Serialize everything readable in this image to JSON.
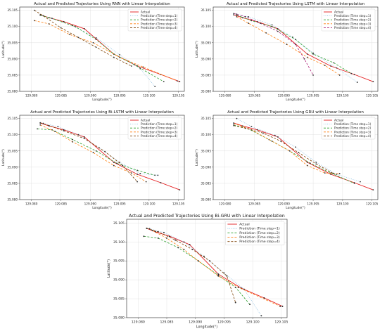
{
  "chart_data": [
    {
      "type": "line",
      "title": "Actual and Predicted Trajectories Using RNN with Linear Interpolation",
      "xlabel": "Longitude(°)",
      "ylabel": "Latitude(°)",
      "xlim": [
        129.078,
        129.106
      ],
      "ylim": [
        35.08,
        35.106
      ],
      "xticks": [
        "129.080",
        "129.085",
        "129.090",
        "129.095",
        "129.100",
        "129.105"
      ],
      "yticks": [
        "35.080",
        "35.085",
        "35.090",
        "35.095",
        "35.100",
        "35.105"
      ],
      "grid": true,
      "legend_position": "top-right",
      "series": [
        {
          "name": "Actual",
          "color": "#e41a1c",
          "dash": "solid",
          "x": [
            129.0815,
            129.083,
            129.0855,
            129.089,
            129.094,
            129.098,
            129.102,
            129.1052
          ],
          "y": [
            35.1036,
            35.1027,
            35.1015,
            35.0993,
            35.0915,
            35.0878,
            35.0852,
            35.083
          ]
        },
        {
          "name": "Prediction (Time step=1)",
          "color": "#8fc1e3",
          "dash": "dotted",
          "x": [
            129.0815,
            129.083,
            129.087,
            129.091,
            129.095,
            129.0985,
            129.101
          ],
          "y": [
            35.1035,
            35.1027,
            35.1003,
            35.0965,
            35.0913,
            35.087,
            35.0815
          ]
        },
        {
          "name": "Prediction (Time step=2)",
          "color": "#2ca02c",
          "dash": "dashed",
          "x": [
            129.0815,
            129.0835,
            129.0875,
            129.091,
            129.094,
            129.0975,
            129.1025
          ],
          "y": [
            35.1035,
            35.1025,
            35.0999,
            35.096,
            35.0915,
            35.0882,
            35.083
          ]
        },
        {
          "name": "Prediction (Time step=3)",
          "color": "#ff7f0e",
          "dash": "dashed",
          "x": [
            129.0805,
            129.083,
            129.0865,
            129.0905,
            129.095,
            129.099,
            129.1048
          ],
          "y": [
            35.1018,
            35.1008,
            35.0975,
            35.095,
            35.0905,
            35.0875,
            35.0832
          ]
        },
        {
          "name": "Prediction (Time step=4)",
          "color": "#7b3f00",
          "dash": "dashed",
          "x": [
            129.0805,
            129.082,
            129.085,
            129.088,
            129.091,
            129.094,
            129.097
          ],
          "y": [
            35.105,
            35.1033,
            35.0996,
            35.0966,
            35.0936,
            35.0905,
            35.0878
          ]
        }
      ]
    },
    {
      "type": "line",
      "title": "Actual and Predicted Trajectories Using LSTM with Linear Interpolation",
      "xlabel": "Longitude(°)",
      "ylabel": "Latitude(°)",
      "xlim": [
        129.078,
        129.106
      ],
      "ylim": [
        35.08,
        35.106
      ],
      "xticks": [
        "129.080",
        "129.085",
        "129.090",
        "129.095",
        "129.100",
        "129.105"
      ],
      "yticks": [
        "35.080",
        "35.085",
        "35.090",
        "35.095",
        "35.100",
        "35.105"
      ],
      "grid": true,
      "legend_position": "top-right",
      "series": [
        {
          "name": "Actual",
          "color": "#e41a1c",
          "dash": "solid",
          "x": [
            129.0815,
            129.083,
            129.0855,
            129.089,
            129.094,
            129.098,
            129.102,
            129.1052
          ],
          "y": [
            35.1036,
            35.1027,
            35.1015,
            35.0993,
            35.0915,
            35.0878,
            35.0852,
            35.083
          ]
        },
        {
          "name": "Prediction (Time step=1)",
          "color": "#8fc1e3",
          "dash": "dotted",
          "x": [
            129.082,
            129.084,
            129.088,
            129.0915,
            129.095,
            129.099,
            129.1025
          ],
          "y": [
            35.1038,
            35.103,
            35.1005,
            35.0967,
            35.0918,
            35.0872,
            35.0828
          ]
        },
        {
          "name": "Prediction (Time step=2)",
          "color": "#2ca02c",
          "dash": "dashed",
          "x": [
            129.082,
            129.0845,
            129.088,
            129.092,
            129.095,
            129.0985,
            129.1015
          ],
          "y": [
            35.1035,
            35.1018,
            35.1,
            35.096,
            35.0915,
            35.0888,
            35.0855
          ]
        },
        {
          "name": "Prediction (Time step=3)",
          "color": "#ff7f0e",
          "dash": "dashed",
          "x": [
            129.082,
            129.084,
            129.087,
            129.0905,
            129.094,
            129.097,
            129.0995
          ],
          "y": [
            35.103,
            35.101,
            35.098,
            35.0945,
            35.0905,
            35.088,
            35.085
          ]
        },
        {
          "name": "Prediction (Time step=4)",
          "color": "#b0247a",
          "dash": "dashed",
          "x": [
            129.0815,
            129.0835,
            129.086,
            129.089,
            129.092,
            129.0935,
            129.095
          ],
          "y": [
            35.104,
            35.103,
            35.101,
            35.0985,
            35.0945,
            35.09,
            35.085
          ]
        }
      ]
    },
    {
      "type": "line",
      "title": "Actual and Predicted Trajectories Using Bi-LSTM with Linear Interpolation",
      "xlabel": "Longitude(°)",
      "ylabel": "Latitude(°)",
      "xlim": [
        129.078,
        129.106
      ],
      "ylim": [
        35.08,
        35.106
      ],
      "xticks": [
        "129.080",
        "129.085",
        "129.090",
        "129.095",
        "129.100",
        "129.105"
      ],
      "yticks": [
        "35.080",
        "35.085",
        "35.090",
        "35.095",
        "35.100",
        "35.105"
      ],
      "grid": true,
      "legend_position": "top-right",
      "series": [
        {
          "name": "Actual",
          "color": "#e41a1c",
          "dash": "solid",
          "x": [
            129.0815,
            129.083,
            129.0855,
            129.089,
            129.094,
            129.098,
            129.102,
            129.1052
          ],
          "y": [
            35.1036,
            35.1027,
            35.1015,
            35.0993,
            35.0915,
            35.0878,
            35.0852,
            35.083
          ]
        },
        {
          "name": "Prediction (Time step=1)",
          "color": "#8fc1e3",
          "dash": "dotted",
          "x": [
            129.082,
            129.0845,
            129.088,
            129.0915,
            129.095,
            129.0985,
            129.1015
          ],
          "y": [
            35.1035,
            35.1025,
            35.1,
            35.096,
            35.0915,
            35.088,
            35.0875
          ]
        },
        {
          "name": "Prediction (Time step=2)",
          "color": "#2ca02c",
          "dash": "dashed",
          "x": [
            129.081,
            129.0835,
            129.087,
            129.091,
            129.0945,
            129.098,
            129.101
          ],
          "y": [
            35.1018,
            35.1015,
            35.0985,
            35.095,
            35.0912,
            35.089,
            35.0875
          ]
        },
        {
          "name": "Prediction (Time step=3)",
          "color": "#ff7f0e",
          "dash": "dashed",
          "x": [
            129.0815,
            129.084,
            129.087,
            129.0905,
            129.094,
            129.097,
            129.0995
          ],
          "y": [
            35.103,
            35.101,
            35.0978,
            35.0945,
            35.0905,
            35.0882,
            35.0855
          ]
        },
        {
          "name": "Prediction (Time step=4)",
          "color": "#7b3f00",
          "dash": "dashed",
          "x": [
            129.0815,
            129.083,
            129.0855,
            129.089,
            129.0925,
            129.0955,
            129.098
          ],
          "y": [
            35.1037,
            35.1028,
            35.1012,
            35.0988,
            35.0948,
            35.0905,
            35.0855
          ]
        }
      ]
    },
    {
      "type": "line",
      "title": "Actual and Predicted Trajectories Using GRU with Linear Interpolation",
      "xlabel": "Longitude(°)",
      "ylabel": "Latitude(°)",
      "xlim": [
        129.078,
        129.106
      ],
      "ylim": [
        35.08,
        35.106
      ],
      "xticks": [
        "129.080",
        "129.085",
        "129.090",
        "129.095",
        "129.100",
        "129.105"
      ],
      "yticks": [
        "35.080",
        "35.085",
        "35.090",
        "35.095",
        "35.100",
        "35.105"
      ],
      "grid": true,
      "legend_position": "top-right",
      "series": [
        {
          "name": "Actual",
          "color": "#e41a1c",
          "dash": "solid",
          "x": [
            129.0815,
            129.083,
            129.0855,
            129.089,
            129.094,
            129.098,
            129.102,
            129.1052
          ],
          "y": [
            35.1036,
            35.1027,
            35.1015,
            35.0993,
            35.0915,
            35.0878,
            35.0852,
            35.083
          ]
        },
        {
          "name": "Prediction (Time step=1)",
          "color": "#8fc1e3",
          "dash": "dotted",
          "x": [
            129.082,
            129.0845,
            129.0885,
            129.092,
            129.0955,
            129.099,
            129.103
          ],
          "y": [
            35.105,
            35.1025,
            35.0998,
            35.0962,
            35.0915,
            35.0878,
            35.0855
          ]
        },
        {
          "name": "Prediction (Time step=2)",
          "color": "#2ca02c",
          "dash": "dashed",
          "x": [
            129.0815,
            129.084,
            129.0875,
            129.091,
            129.0945,
            129.098,
            129.102
          ],
          "y": [
            35.103,
            35.1018,
            35.0985,
            35.095,
            35.0912,
            35.0882,
            35.085
          ]
        },
        {
          "name": "Prediction (Time step=3)",
          "color": "#ff7f0e",
          "dash": "dashed",
          "x": [
            129.0815,
            129.0845,
            129.088,
            129.091,
            129.094,
            129.097,
            129.0995
          ],
          "y": [
            35.1035,
            35.1015,
            35.098,
            35.095,
            35.0905,
            35.0882,
            35.088
          ]
        },
        {
          "name": "Prediction (Time step=4)",
          "color": "#7b3f00",
          "dash": "dashed",
          "x": [
            129.0815,
            129.0835,
            129.0865,
            129.0895,
            129.0925,
            129.0955,
            129.0985
          ],
          "y": [
            35.1028,
            35.102,
            35.1005,
            35.098,
            35.0945,
            35.091,
            35.088
          ]
        }
      ]
    },
    {
      "type": "line",
      "title": "Actual and Predicted Trajectories Using Bi-GRU with Linear Interpolation",
      "xlabel": "Longitude(°)",
      "ylabel": "Latitude(°)",
      "xlim": [
        129.078,
        129.106
      ],
      "ylim": [
        35.08,
        35.106
      ],
      "xticks": [
        "129.080",
        "129.085",
        "129.090",
        "129.095",
        "129.100",
        "129.105"
      ],
      "yticks": [
        "35.080",
        "35.085",
        "35.090",
        "35.095",
        "35.100",
        "35.105"
      ],
      "grid": true,
      "legend_position": "top-right",
      "series": [
        {
          "name": "Actual",
          "color": "#e41a1c",
          "dash": "solid",
          "x": [
            129.0815,
            129.083,
            129.0855,
            129.089,
            129.094,
            129.098,
            129.102,
            129.1052
          ],
          "y": [
            35.1036,
            35.1027,
            35.1015,
            35.0993,
            35.0915,
            35.0878,
            35.0852,
            35.083
          ]
        },
        {
          "name": "Prediction (Time step=1)",
          "color": "#8fc1e3",
          "dash": "dotted",
          "x": [
            129.082,
            129.0845,
            129.088,
            129.0915,
            129.095,
            129.0985,
            129.1015
          ],
          "y": [
            35.1035,
            35.1025,
            35.1,
            35.0962,
            35.0918,
            35.0875,
            35.0805
          ]
        },
        {
          "name": "Prediction (Time step=2)",
          "color": "#2ca02c",
          "dash": "dashed",
          "x": [
            129.081,
            129.0835,
            129.087,
            129.0905,
            129.094,
            129.097,
            129.0995
          ],
          "y": [
            35.1015,
            35.101,
            35.0985,
            35.095,
            35.0912,
            35.088,
            35.0835
          ]
        },
        {
          "name": "Prediction (Time step=3)",
          "color": "#ff7f0e",
          "dash": "dashed",
          "x": [
            129.0825,
            129.085,
            129.088,
            129.0905,
            129.094,
            129.0975,
            129.1048
          ],
          "y": [
            35.103,
            35.101,
            35.098,
            35.095,
            35.091,
            35.088,
            35.083
          ]
        },
        {
          "name": "Prediction (Time step=4)",
          "color": "#7b3f00",
          "dash": "dashed",
          "x": [
            129.0815,
            129.0835,
            129.0865,
            129.0895,
            129.0925,
            129.0955,
            129.097
          ],
          "y": [
            35.1036,
            35.1027,
            35.1005,
            35.098,
            35.095,
            35.091,
            35.084
          ]
        }
      ]
    }
  ]
}
